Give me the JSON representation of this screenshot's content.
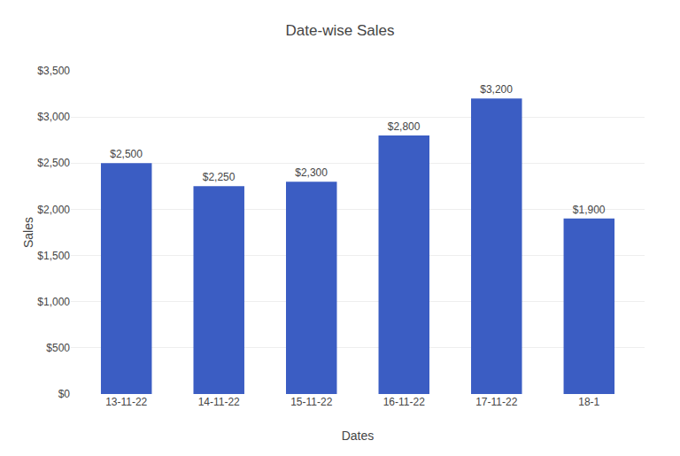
{
  "chart_data": {
    "type": "bar",
    "title": "Date-wise Sales",
    "xlabel": "Dates",
    "ylabel": "Sales",
    "categories": [
      "13-11-22",
      "14-11-22",
      "15-11-22",
      "16-11-22",
      "17-11-22",
      "18-1"
    ],
    "values": [
      2500,
      2250,
      2300,
      2800,
      3200,
      1900
    ],
    "value_labels": [
      "$2,500",
      "$2,250",
      "$2,300",
      "$2,800",
      "$3,200",
      "$1,900"
    ],
    "data_labels": true,
    "color": "#3B5DC3",
    "ylim": [
      0,
      3500
    ],
    "yticks": [
      {
        "value": 0,
        "label": "$0"
      },
      {
        "value": 500,
        "label": "$500"
      },
      {
        "value": 1000,
        "label": "$1,000"
      },
      {
        "value": 1500,
        "label": "$1,500"
      },
      {
        "value": 2000,
        "label": "$2,000"
      },
      {
        "value": 2500,
        "label": "$2,500"
      },
      {
        "value": 3000,
        "label": "$3,000"
      },
      {
        "value": 3500,
        "label": "$3,500"
      }
    ],
    "grid": true
  }
}
